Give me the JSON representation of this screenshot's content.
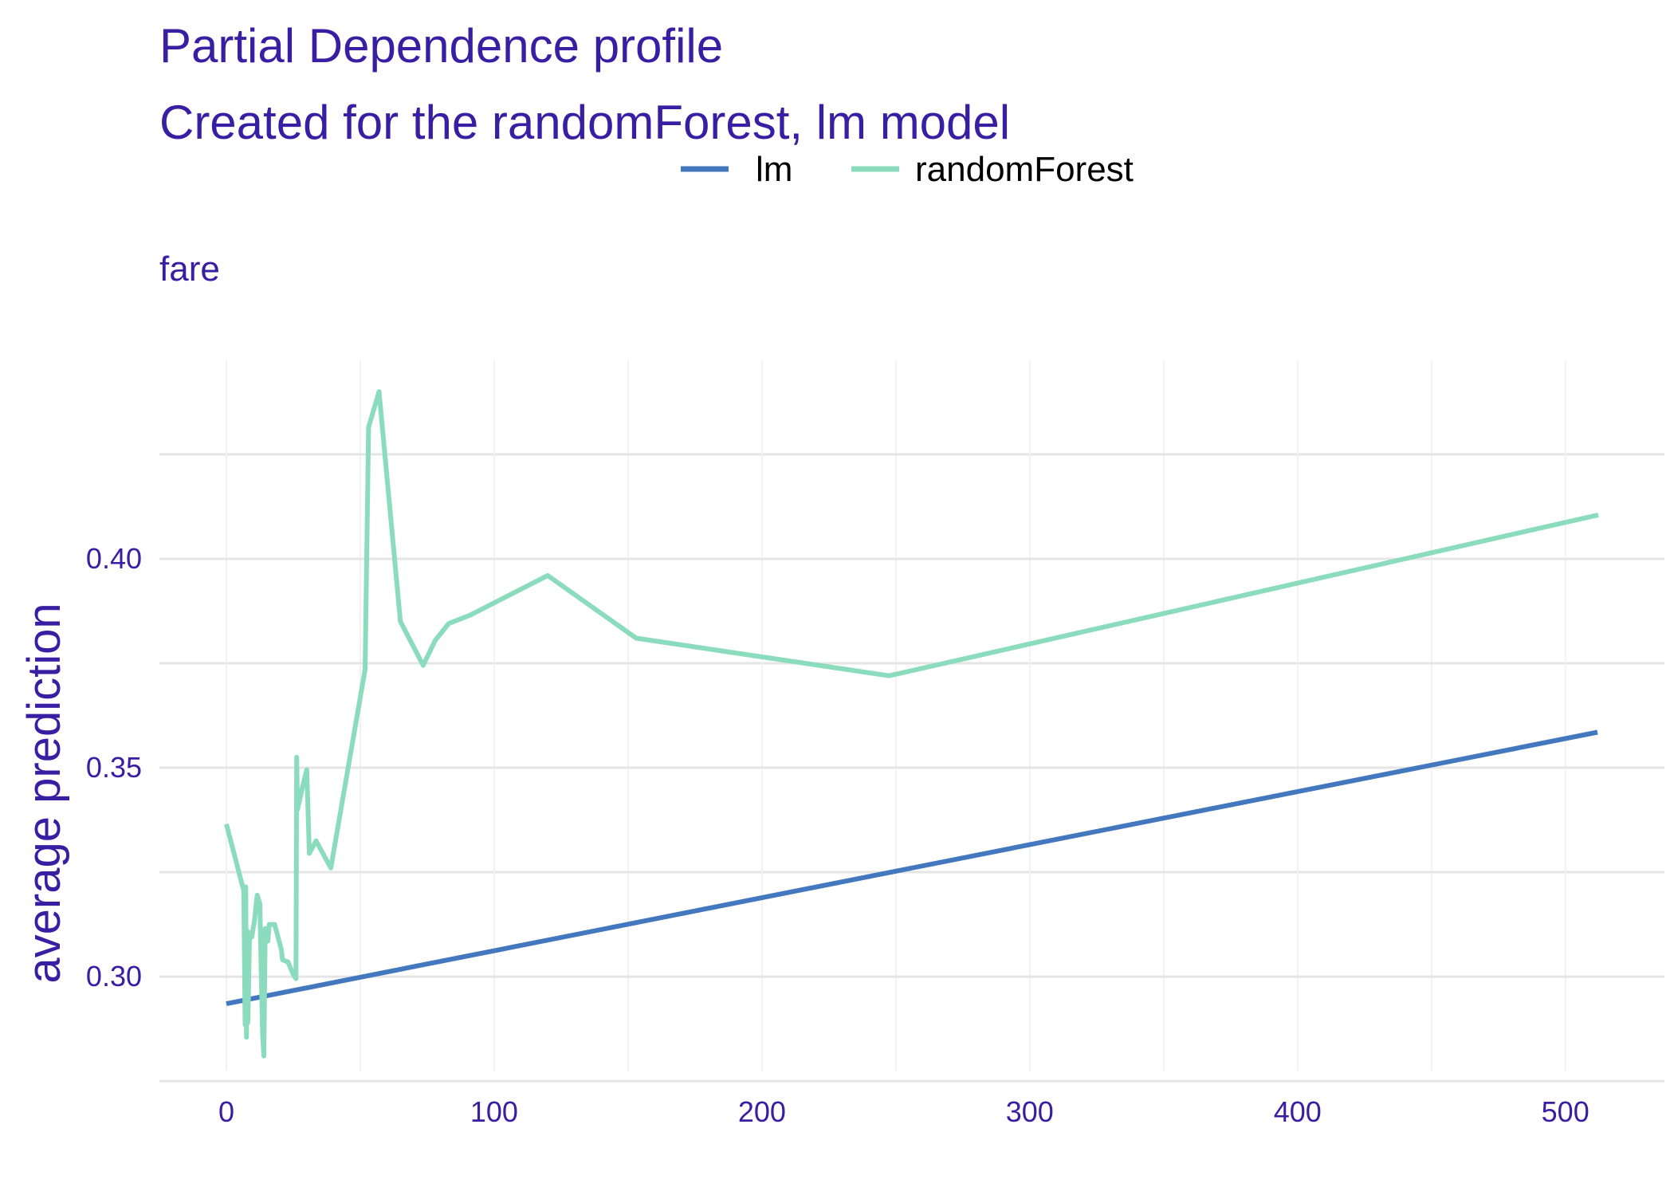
{
  "colors": {
    "accent": "#371EA3",
    "lm": "#4378BF",
    "randomForest": "#8BDCBE",
    "grid_major": "#E5E5E5",
    "grid_minor": "#F2F2F2",
    "legend_text": "#000000",
    "background": "#FFFFFF"
  },
  "chart_data": {
    "type": "line",
    "title": "Partial Dependence profile",
    "subtitle": "Created for the randomForest, lm model",
    "facet_label": "fare",
    "xlabel": "",
    "ylabel": "average prediction",
    "xlim": [
      -25,
      537
    ],
    "ylim": [
      0.2775,
      0.4475
    ],
    "x_ticks": [
      0,
      100,
      200,
      300,
      400,
      500
    ],
    "x_tick_labels": [
      "0",
      "100",
      "200",
      "300",
      "400",
      "500"
    ],
    "y_ticks": [
      0.3,
      0.35,
      0.4
    ],
    "y_tick_labels": [
      "0.30",
      "0.35",
      "0.40"
    ],
    "x_minor_ticks": [
      50,
      150,
      250,
      350,
      450
    ],
    "y_minor_ticks": [
      0.275,
      0.325,
      0.375,
      0.425
    ],
    "grid": true,
    "legend": "top",
    "series": [
      {
        "name": "lm",
        "color": "#4378BF",
        "points": [
          [
            0,
            0.2935
          ],
          [
            512,
            0.3585
          ]
        ]
      },
      {
        "name": "randomForest",
        "color": "#8BDCBE",
        "points": [
          [
            0,
            0.3365
          ],
          [
            6.5,
            0.3205
          ],
          [
            7.0,
            0.2885
          ],
          [
            7.25,
            0.3215
          ],
          [
            7.5,
            0.2855
          ],
          [
            7.75,
            0.311
          ],
          [
            8.05,
            0.289
          ],
          [
            8.66,
            0.3105
          ],
          [
            9.5,
            0.3095
          ],
          [
            10.5,
            0.3135
          ],
          [
            11.5,
            0.3195
          ],
          [
            12.5,
            0.3175
          ],
          [
            13.0,
            0.301
          ],
          [
            13.5,
            0.287
          ],
          [
            14.0,
            0.281
          ],
          [
            14.5,
            0.3115
          ],
          [
            15.5,
            0.3085
          ],
          [
            16.0,
            0.3125
          ],
          [
            18.0,
            0.3125
          ],
          [
            20.5,
            0.3065
          ],
          [
            21.0,
            0.304
          ],
          [
            23.0,
            0.3035
          ],
          [
            24.0,
            0.302
          ],
          [
            25.0,
            0.3005
          ],
          [
            26.0,
            0.2995
          ],
          [
            26.25,
            0.3525
          ],
          [
            26.55,
            0.34
          ],
          [
            28.5,
            0.3455
          ],
          [
            30.0,
            0.3495
          ],
          [
            31.0,
            0.3295
          ],
          [
            33.5,
            0.3325
          ],
          [
            39.0,
            0.326
          ],
          [
            51.8,
            0.3735
          ],
          [
            53.1,
            0.4315
          ],
          [
            57.0,
            0.44
          ],
          [
            65.0,
            0.385
          ],
          [
            73.5,
            0.3745
          ],
          [
            78.0,
            0.3805
          ],
          [
            83.0,
            0.3845
          ],
          [
            91.0,
            0.3865
          ],
          [
            120.0,
            0.396
          ],
          [
            153.0,
            0.381
          ],
          [
            247.5,
            0.372
          ],
          [
            512.3,
            0.4105
          ]
        ]
      }
    ]
  }
}
